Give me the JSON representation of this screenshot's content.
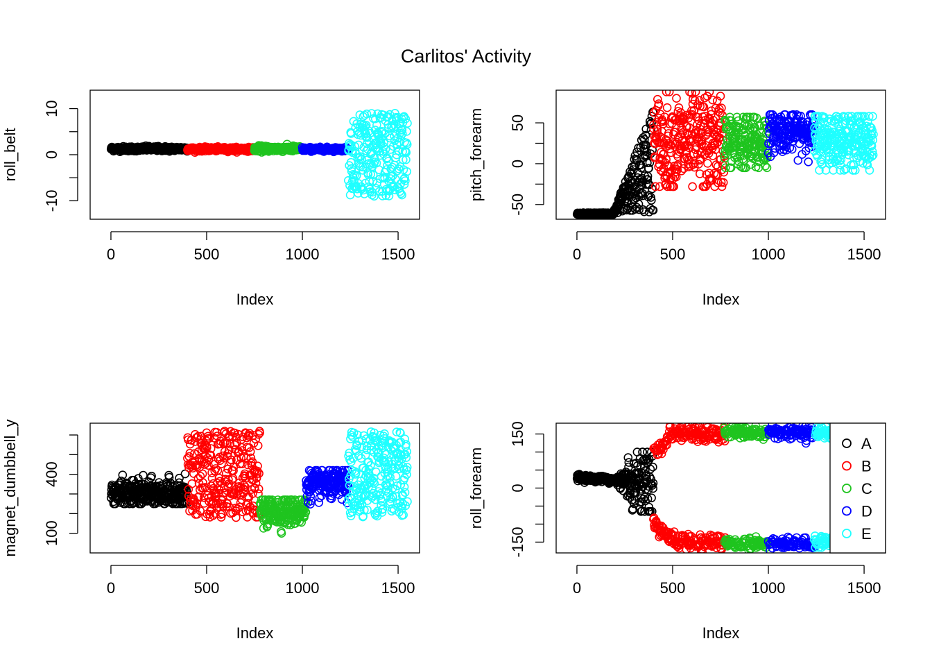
{
  "title": "Carlitos' Activity",
  "colors": {
    "A": "#000000",
    "B": "#ff0000",
    "C": "#1fc41f",
    "D": "#0000ff",
    "E": "#1fffff"
  },
  "legend": {
    "position": "right",
    "entries": [
      "A",
      "B",
      "C",
      "D",
      "E"
    ]
  },
  "chart_data": [
    {
      "type": "scatter",
      "ylabel": "roll_belt",
      "xlabel": "Index",
      "xlim": [
        0,
        1550
      ],
      "ylim": [
        -14,
        14
      ],
      "xticks": [
        0,
        500,
        1000,
        1500
      ],
      "yticks": [
        -10,
        0,
        10
      ],
      "minor_yticks": [
        -5,
        5
      ],
      "classes": [
        {
          "name": "A",
          "range": [
            1,
            400
          ],
          "shape": "flat",
          "mean": 1.3,
          "spread": 0.5
        },
        {
          "name": "B",
          "range": [
            400,
            750
          ],
          "shape": "flat",
          "mean": 1.2,
          "spread": 0.4
        },
        {
          "name": "C",
          "range": [
            750,
            1000
          ],
          "shape": "flat",
          "mean": 1.3,
          "spread": 0.6
        },
        {
          "name": "D",
          "range": [
            1000,
            1240
          ],
          "shape": "flat",
          "mean": 1.2,
          "spread": 0.4
        },
        {
          "name": "E",
          "range": [
            1240,
            1550
          ],
          "shape": "wide",
          "mean": 0,
          "spread": 9,
          "min": -13.5,
          "max": 13
        }
      ]
    },
    {
      "type": "scatter",
      "ylabel": "pitch_forearm",
      "xlabel": "Index",
      "xlim": [
        0,
        1550
      ],
      "ylim": [
        -68,
        90
      ],
      "xticks": [
        0,
        500,
        1000,
        1500
      ],
      "yticks": [
        -50,
        0,
        50
      ],
      "minor_yticks": [
        -25,
        25
      ],
      "classes": [
        {
          "name": "A",
          "range": [
            1,
            400
          ],
          "shape": "ramp",
          "mean": -63,
          "spread": 40,
          "min": -64,
          "max": 85
        },
        {
          "name": "B",
          "range": [
            400,
            770
          ],
          "shape": "band",
          "mean": 25,
          "spread": 30,
          "min": -28,
          "max": 88
        },
        {
          "name": "C",
          "range": [
            770,
            1000
          ],
          "shape": "band",
          "mean": 25,
          "spread": 20,
          "min": -5,
          "max": 57
        },
        {
          "name": "D",
          "range": [
            1000,
            1240
          ],
          "shape": "band",
          "mean": 40,
          "spread": 12,
          "min": 0,
          "max": 60
        },
        {
          "name": "E",
          "range": [
            1240,
            1550
          ],
          "shape": "band",
          "mean": 30,
          "spread": 18,
          "min": -8,
          "max": 58
        }
      ]
    },
    {
      "type": "scatter",
      "ylabel": "magnet_dumbbell_y",
      "xlabel": "Index",
      "xlim": [
        0,
        1550
      ],
      "ylim": [
        0,
        660
      ],
      "xticks": [
        0,
        500,
        1000,
        1500
      ],
      "yticks": [
        100,
        400
      ],
      "minor_yticks": [
        200,
        300,
        500,
        600
      ],
      "classes": [
        {
          "name": "A",
          "range": [
            1,
            400
          ],
          "shape": "band",
          "mean": 300,
          "spread": 35,
          "min": 250,
          "max": 430
        },
        {
          "name": "B",
          "range": [
            400,
            780
          ],
          "shape": "wide",
          "mean": 400,
          "spread": 220,
          "min": 30,
          "max": 650
        },
        {
          "name": "C",
          "range": [
            780,
            1020
          ],
          "shape": "band",
          "mean": 215,
          "spread": 40,
          "min": 100,
          "max": 270
        },
        {
          "name": "D",
          "range": [
            1020,
            1240
          ],
          "shape": "band",
          "mean": 350,
          "spread": 40,
          "min": 170,
          "max": 420
        },
        {
          "name": "E",
          "range": [
            1240,
            1550
          ],
          "shape": "wide",
          "mean": 400,
          "spread": 220,
          "min": 70,
          "max": 640
        }
      ]
    },
    {
      "type": "scatter",
      "ylabel": "roll_forearm",
      "xlabel": "Index",
      "xlim": [
        0,
        1550
      ],
      "ylim": [
        -180,
        180
      ],
      "xticks": [
        0,
        500,
        1000,
        1500
      ],
      "yticks": [
        -150,
        0,
        150
      ],
      "minor_yticks": [
        -100,
        -50,
        50,
        100
      ],
      "classes": [
        {
          "name": "A",
          "range": [
            1,
            400
          ],
          "shape": "fan",
          "mean": 30,
          "spread": 60,
          "min": -65,
          "max": 100
        },
        {
          "name": "B",
          "range": [
            400,
            780
          ],
          "shape": "split",
          "mean": 150,
          "spread": 20,
          "min": -178,
          "max": 178
        },
        {
          "name": "C",
          "range": [
            770,
            1000
          ],
          "shape": "split",
          "mean": 155,
          "spread": 12,
          "min": -175,
          "max": 178
        },
        {
          "name": "D",
          "range": [
            1000,
            1240
          ],
          "shape": "split",
          "mean": 155,
          "spread": 15,
          "min": -175,
          "max": 178
        },
        {
          "name": "E",
          "range": [
            1240,
            1550
          ],
          "shape": "split",
          "mean": 150,
          "spread": 15,
          "min": -165,
          "max": 170
        }
      ]
    }
  ]
}
